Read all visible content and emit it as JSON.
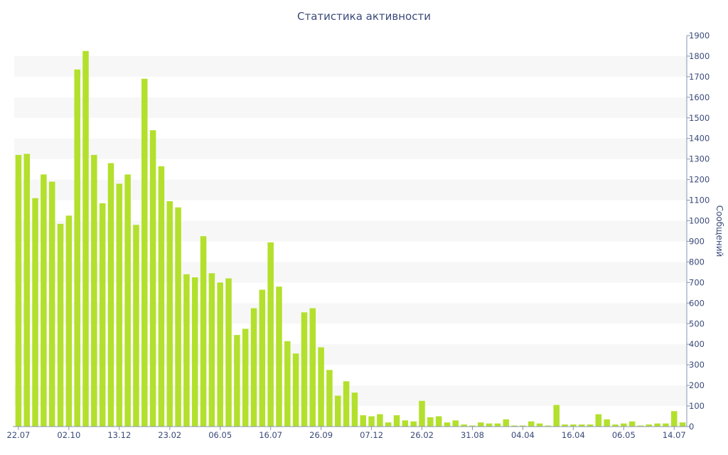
{
  "chart_data": {
    "type": "bar",
    "title": "Статистика активности",
    "xlabel": "",
    "ylabel": "Сообщений",
    "ylim": [
      0,
      1900
    ],
    "y_ticks": [
      0,
      100,
      200,
      300,
      400,
      500,
      600,
      700,
      800,
      900,
      1000,
      1100,
      1200,
      1300,
      1400,
      1500,
      1600,
      1700,
      1800,
      1900
    ],
    "x_tick_labels": [
      {
        "index": 0,
        "label": "22.07"
      },
      {
        "index": 6,
        "label": "02.10"
      },
      {
        "index": 12,
        "label": "13.12"
      },
      {
        "index": 18,
        "label": "23.02"
      },
      {
        "index": 24,
        "label": "06.05"
      },
      {
        "index": 30,
        "label": "16.07"
      },
      {
        "index": 36,
        "label": "26.09"
      },
      {
        "index": 42,
        "label": "07.12"
      },
      {
        "index": 48,
        "label": "26.02"
      },
      {
        "index": 54,
        "label": "31.08"
      },
      {
        "index": 60,
        "label": "04.04"
      },
      {
        "index": 66,
        "label": "16.04"
      },
      {
        "index": 72,
        "label": "06.05"
      },
      {
        "index": 78,
        "label": "14.07"
      }
    ],
    "values": [
      1320,
      1325,
      1110,
      1225,
      1190,
      985,
      1025,
      1735,
      1825,
      1320,
      1085,
      1280,
      1180,
      1225,
      980,
      1690,
      1440,
      1265,
      1095,
      1065,
      740,
      725,
      925,
      745,
      700,
      720,
      445,
      475,
      575,
      665,
      895,
      680,
      415,
      355,
      555,
      575,
      385,
      275,
      150,
      220,
      165,
      55,
      50,
      60,
      20,
      55,
      30,
      25,
      125,
      45,
      50,
      20,
      30,
      10,
      5,
      20,
      15,
      15,
      35,
      5,
      5,
      25,
      15,
      5,
      105,
      10,
      10,
      10,
      10,
      60,
      35,
      10,
      15,
      25,
      5,
      10,
      15,
      15,
      75,
      20
    ],
    "grid": true,
    "grid_style": "alternating bands",
    "y_axis_side": "right",
    "bar_color": "#b3e02c",
    "band_color": "#f7f7f7",
    "text_color": "#3a4a7a"
  }
}
